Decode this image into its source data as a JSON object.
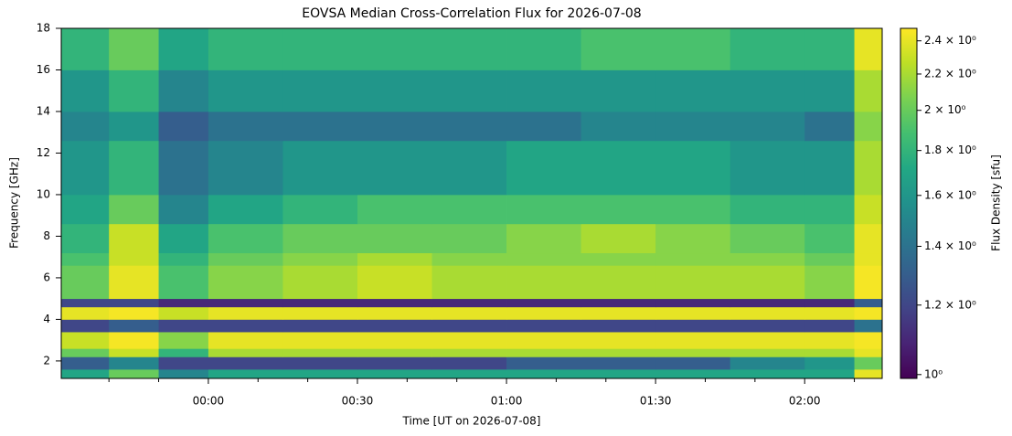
{
  "chart_data": {
    "type": "heatmap",
    "title": "EOVSA Median Cross-Correlation Flux for 2026-07-08",
    "xlabel": "Time [UT on 2026-07-08]",
    "ylabel": "Frequency [GHz]",
    "colorbar_label": "Flux Density [sfu]",
    "colormap": "viridis",
    "color_log": true,
    "clim": [
      0.99,
      2.48
    ],
    "cticks": [
      {
        "value": 1.0,
        "label": "10⁰"
      },
      {
        "value": 1.2,
        "label": "1.2 × 10⁰"
      },
      {
        "value": 1.4,
        "label": "1.4 × 10⁰"
      },
      {
        "value": 1.6,
        "label": "1.6 × 10⁰"
      },
      {
        "value": 1.8,
        "label": "1.8 × 10⁰"
      },
      {
        "value": 2.0,
        "label": "2 × 10⁰"
      },
      {
        "value": 2.2,
        "label": "2.2 × 10⁰"
      },
      {
        "value": 2.4,
        "label": "2.4 × 10⁰"
      }
    ],
    "xlim": [
      -29.6,
      135.6
    ],
    "xticks": [
      {
        "value": 0,
        "label": "00:00"
      },
      {
        "value": 30,
        "label": "00:30"
      },
      {
        "value": 60,
        "label": "01:00"
      },
      {
        "value": 90,
        "label": "01:30"
      },
      {
        "value": 120,
        "label": "02:00"
      }
    ],
    "xminor": [
      -20,
      -10,
      10,
      20,
      40,
      50,
      70,
      80,
      100,
      110,
      130
    ],
    "ylim": [
      1.16,
      18
    ],
    "yticks": [
      2,
      4,
      6,
      8,
      10,
      12,
      14,
      16,
      18
    ],
    "xbins": [
      -29.6,
      -20,
      -10,
      0,
      15,
      30,
      45,
      60,
      75,
      90,
      105,
      120,
      130,
      135.6
    ],
    "ybins": [
      1.16,
      1.6,
      2.2,
      2.6,
      3.4,
      4.0,
      4.6,
      5.0,
      6.6,
      7.2,
      8.6,
      10,
      12.6,
      14,
      16,
      18
    ],
    "z": [
      [
        1.7,
        2.0,
        1.5,
        1.7,
        1.7,
        1.7,
        1.7,
        1.7,
        1.7,
        1.7,
        1.7,
        1.7,
        2.4
      ],
      [
        1.3,
        1.5,
        1.2,
        1.2,
        1.2,
        1.2,
        1.2,
        1.3,
        1.3,
        1.3,
        1.5,
        1.6,
        2.0
      ],
      [
        2.0,
        2.3,
        1.8,
        2.2,
        2.2,
        2.2,
        2.2,
        2.2,
        2.2,
        2.2,
        2.2,
        2.2,
        2.4
      ],
      [
        2.3,
        2.45,
        2.1,
        2.4,
        2.4,
        2.4,
        2.4,
        2.4,
        2.4,
        2.4,
        2.4,
        2.4,
        2.45
      ],
      [
        1.2,
        1.3,
        1.2,
        1.2,
        1.2,
        1.2,
        1.2,
        1.2,
        1.2,
        1.2,
        1.2,
        1.2,
        1.4
      ],
      [
        2.4,
        2.45,
        2.3,
        2.4,
        2.4,
        2.4,
        2.4,
        2.4,
        2.4,
        2.4,
        2.4,
        2.4,
        2.45
      ],
      [
        1.2,
        1.2,
        1.1,
        1.1,
        1.1,
        1.1,
        1.1,
        1.1,
        1.1,
        1.1,
        1.1,
        1.1,
        1.3
      ],
      [
        2.0,
        2.4,
        1.9,
        2.1,
        2.2,
        2.3,
        2.2,
        2.2,
        2.2,
        2.2,
        2.2,
        2.1,
        2.45
      ],
      [
        1.9,
        2.3,
        1.8,
        2.0,
        2.1,
        2.2,
        2.1,
        2.1,
        2.1,
        2.1,
        2.1,
        2.0,
        2.4
      ],
      [
        1.8,
        2.3,
        1.7,
        1.9,
        2.0,
        2.0,
        2.0,
        2.1,
        2.2,
        2.1,
        2.0,
        1.9,
        2.4
      ],
      [
        1.7,
        2.0,
        1.5,
        1.7,
        1.8,
        1.9,
        1.9,
        1.9,
        1.9,
        1.9,
        1.8,
        1.8,
        2.3
      ],
      [
        1.6,
        1.8,
        1.4,
        1.5,
        1.6,
        1.6,
        1.6,
        1.7,
        1.7,
        1.7,
        1.6,
        1.6,
        2.2
      ],
      [
        1.5,
        1.6,
        1.3,
        1.4,
        1.4,
        1.4,
        1.4,
        1.4,
        1.5,
        1.5,
        1.5,
        1.4,
        2.1
      ],
      [
        1.6,
        1.8,
        1.5,
        1.6,
        1.6,
        1.6,
        1.6,
        1.6,
        1.6,
        1.6,
        1.6,
        1.6,
        2.2
      ],
      [
        1.8,
        2.0,
        1.7,
        1.8,
        1.8,
        1.8,
        1.8,
        1.8,
        1.9,
        1.9,
        1.8,
        1.8,
        2.4
      ]
    ]
  }
}
